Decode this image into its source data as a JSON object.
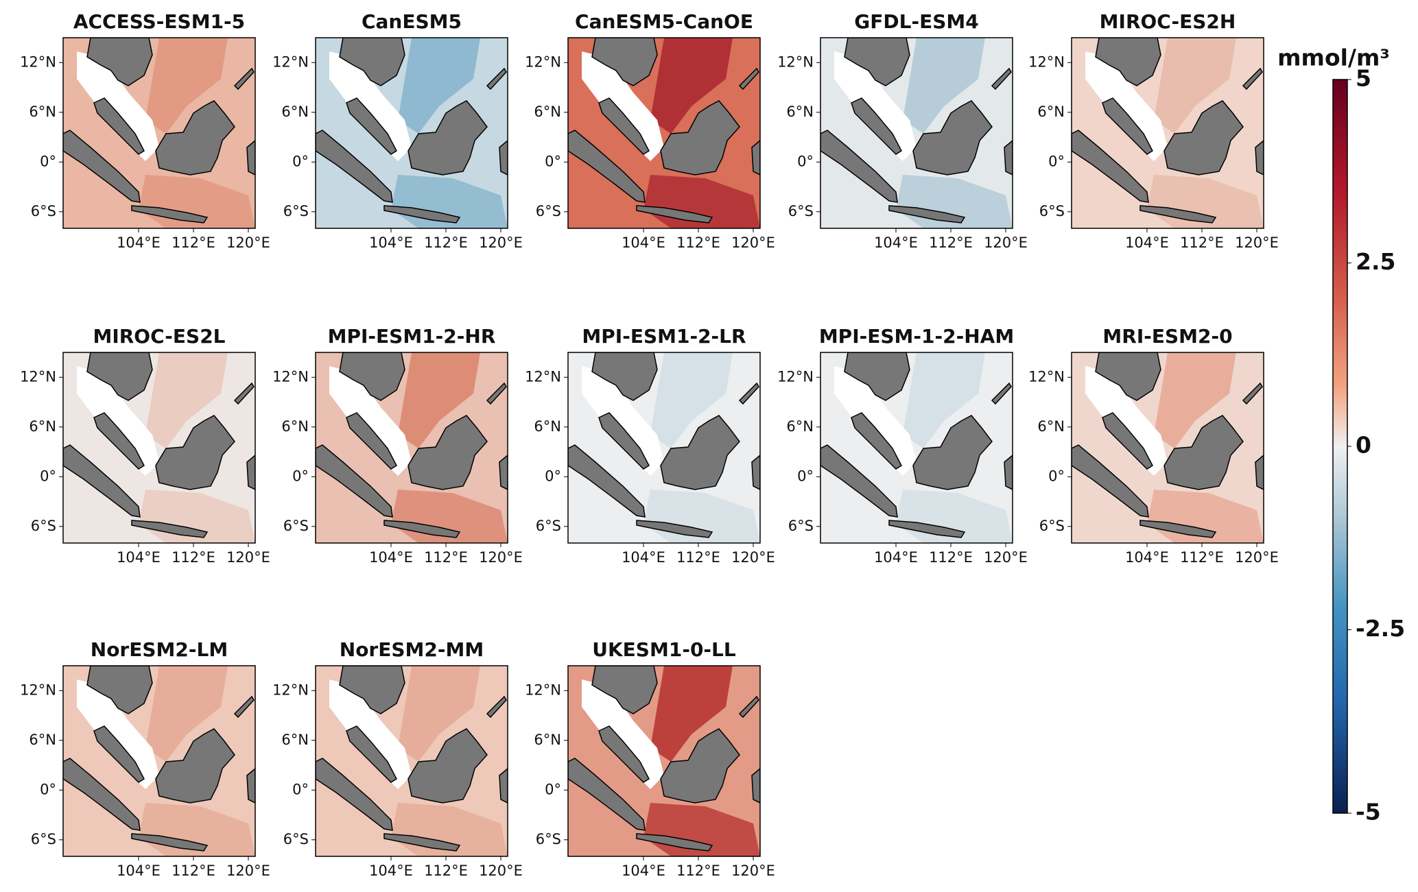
{
  "panels": [
    {
      "title": "ACCESS-ESM1-5"
    },
    {
      "title": "CanESM5"
    },
    {
      "title": "CanESM5-CanOE"
    },
    {
      "title": "GFDL-ESM4"
    },
    {
      "title": "MIROC-ES2H"
    },
    {
      "title": "MIROC-ES2L"
    },
    {
      "title": "MPI-ESM1-2-HR"
    },
    {
      "title": "MPI-ESM1-2-LR"
    },
    {
      "title": "MPI-ESM-1-2-HAM"
    },
    {
      "title": "MRI-ESM2-0"
    },
    {
      "title": "NorESM2-LM"
    },
    {
      "title": "NorESM2-MM"
    },
    {
      "title": "UKESM1-0-LL"
    }
  ],
  "map": {
    "lon_lim": [
      93,
      121
    ],
    "lat_lim": [
      -8,
      15
    ],
    "lat_ticks": [
      {
        "value": 12,
        "label": "12°N"
      },
      {
        "value": 6,
        "label": "6°N"
      },
      {
        "value": 0,
        "label": "0°"
      },
      {
        "value": -6,
        "label": "6°S"
      }
    ],
    "lon_ticks": [
      {
        "value": 104,
        "label": "104°E"
      },
      {
        "value": 112,
        "label": "112°E"
      },
      {
        "value": 120,
        "label": "120°E"
      }
    ]
  },
  "colorbar": {
    "label": "mmol/m³",
    "lim": [
      -5,
      5
    ],
    "ticks": [
      5,
      2.5,
      0,
      -2.5,
      -5
    ]
  }
}
